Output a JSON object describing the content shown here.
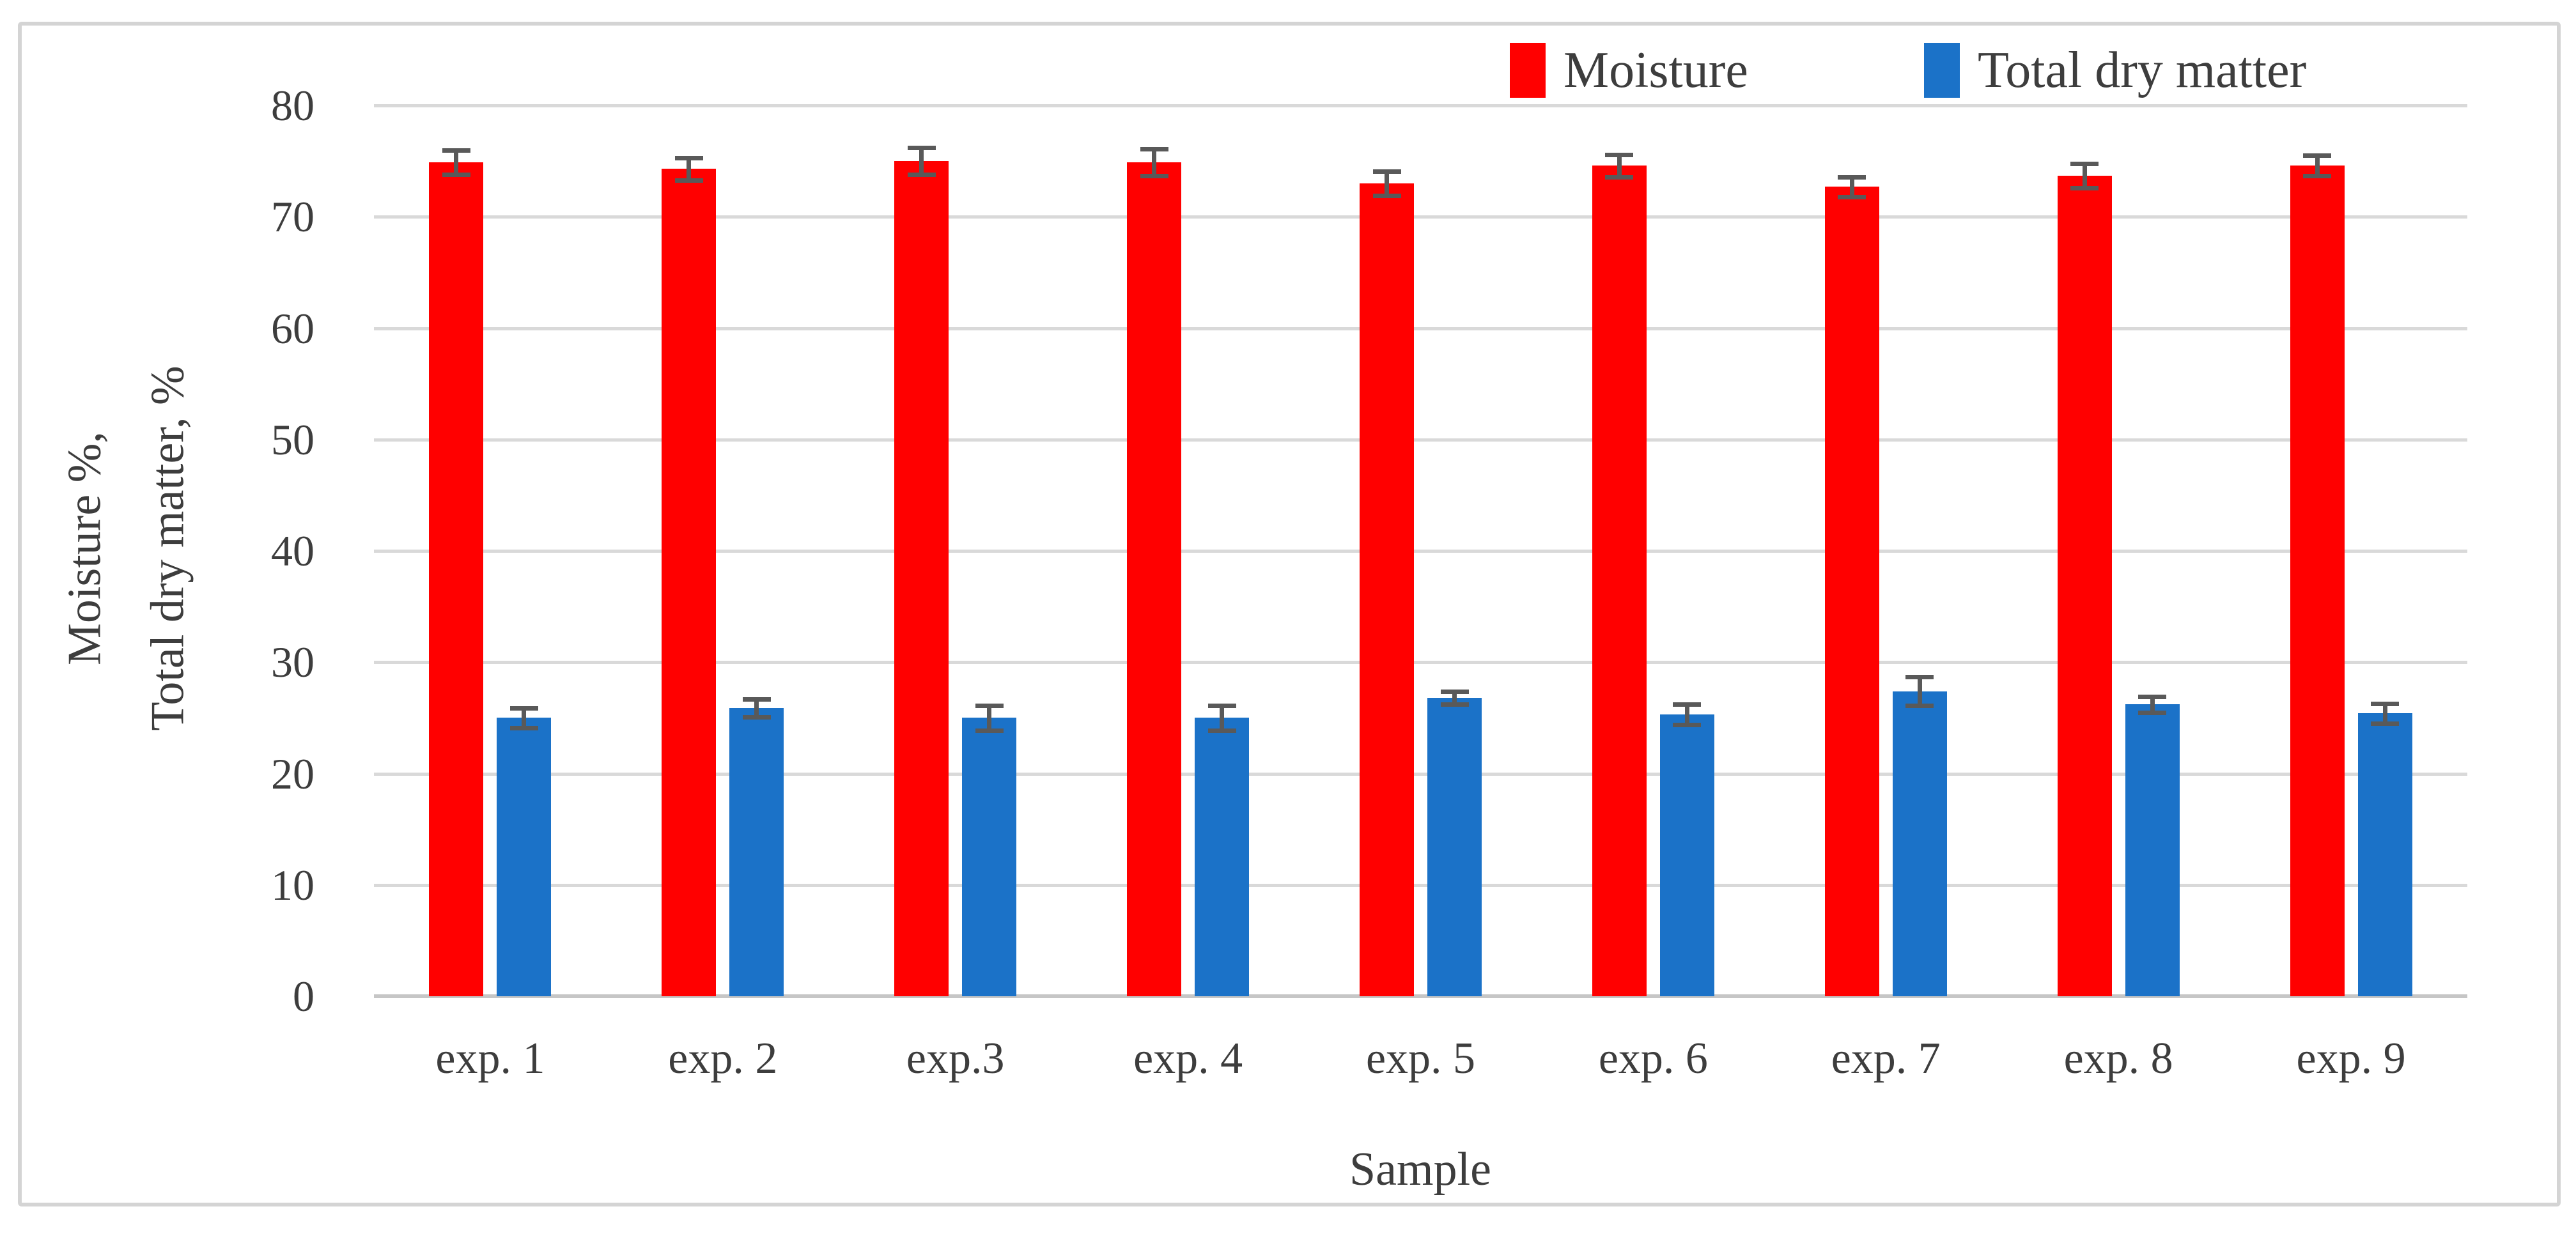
{
  "figure": {
    "y_axis": {
      "title_line1": "Moisture %,",
      "title_line2": "Total dry matter, %",
      "tick_min": 0,
      "tick_max": 80,
      "tick_step": 10
    },
    "x_axis": {
      "title": "Sample"
    },
    "legend": {
      "moisture_label": "Moisture",
      "drymatter_label": "Total dry matter"
    },
    "colors": {
      "moisture": "#FF0000",
      "dry_matter": "#1B72C8",
      "gridline": "#D9D9D9",
      "axis_line": "#C6C6C6",
      "error_bar": "#595959",
      "text": "#3D3D3D",
      "frame_border": "#D4D4D4"
    }
  },
  "chart_data": {
    "type": "bar",
    "title": "",
    "categories": [
      "exp. 1",
      "exp. 2",
      "exp.3",
      "exp. 4",
      "exp. 5",
      "exp. 6",
      "exp. 7",
      "exp. 8",
      "exp. 9"
    ],
    "series": [
      {
        "name": "Moisture",
        "color": "#FF0000",
        "values": [
          74.9,
          74.3,
          75.0,
          74.9,
          73.0,
          74.6,
          72.7,
          73.7,
          74.6
        ],
        "errors": [
          1.1,
          1.0,
          1.2,
          1.2,
          1.1,
          1.0,
          0.9,
          1.1,
          0.9
        ]
      },
      {
        "name": "Total dry matter",
        "color": "#1B72C8",
        "values": [
          25.0,
          25.9,
          25.0,
          25.0,
          26.8,
          25.3,
          27.4,
          26.2,
          25.4
        ],
        "errors": [
          0.9,
          0.8,
          1.1,
          1.1,
          0.6,
          0.9,
          1.3,
          0.7,
          0.9
        ]
      }
    ],
    "xlabel": "Sample",
    "ylabel": "Moisture %,\nTotal dry matter, %",
    "ylim": [
      0,
      80
    ],
    "ytick_step": 10,
    "grid": "horizontal",
    "legend_position": "top-right",
    "error_bars": true
  }
}
